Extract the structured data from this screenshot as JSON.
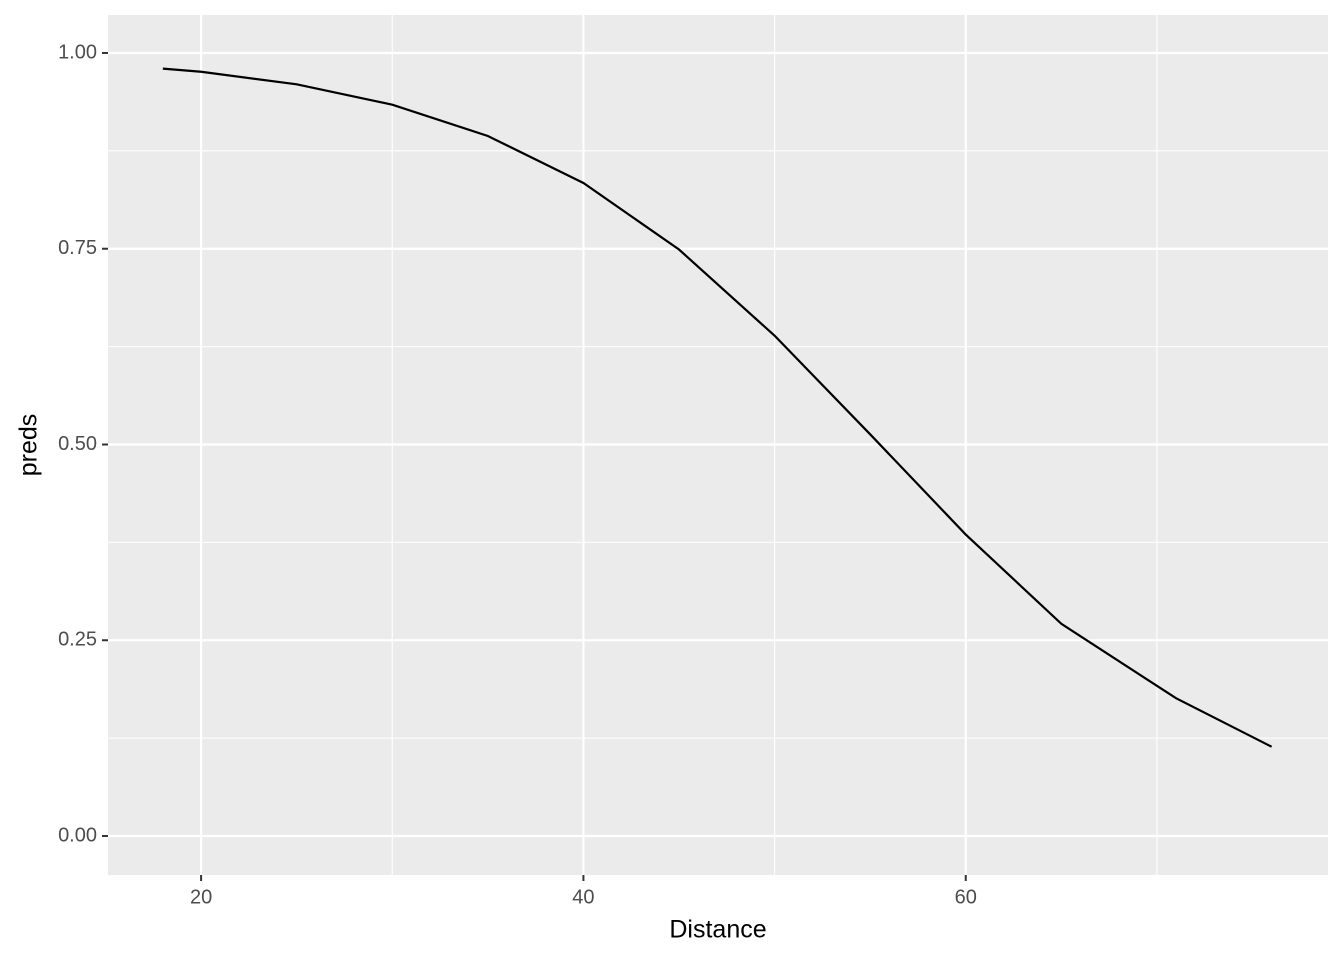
{
  "chart_data": {
    "type": "line",
    "x_label": "Distance",
    "y_label": "preds",
    "x": [
      18,
      20,
      25,
      30,
      35,
      40,
      45,
      50,
      55,
      60,
      65,
      71,
      76
    ],
    "series": [
      {
        "name": "preds",
        "color": "#000000",
        "values": [
          0.98,
          0.976,
          0.96,
          0.934,
          0.894,
          0.834,
          0.749,
          0.639,
          0.513,
          0.385,
          0.271,
          0.176,
          0.114
        ]
      }
    ],
    "xlim": [
      15.13,
      78.95
    ],
    "ylim": [
      -0.0498,
      1.0485
    ],
    "xticks": [
      20,
      40,
      60
    ],
    "x_minor_ticks": [
      30,
      50,
      70
    ],
    "yticks": [
      {
        "value": 0,
        "label": "0.00"
      },
      {
        "value": 0.25,
        "label": "0.25"
      },
      {
        "value": 0.5,
        "label": "0.50"
      },
      {
        "value": 0.75,
        "label": "0.75"
      },
      {
        "value": 1,
        "label": "1.00"
      }
    ],
    "y_minor_ticks": [
      0.125,
      0.375,
      0.625,
      0.875
    ],
    "grid": true,
    "panel_color": "#ebebeb"
  }
}
